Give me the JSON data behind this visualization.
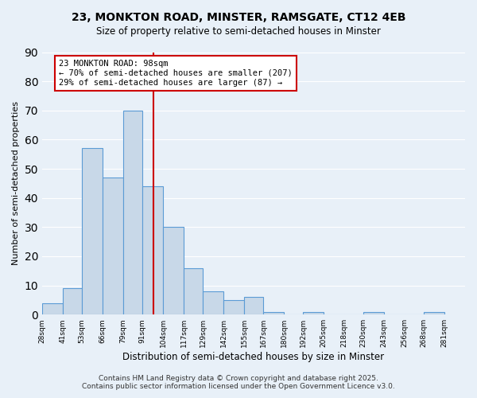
{
  "title1": "23, MONKTON ROAD, MINSTER, RAMSGATE, CT12 4EB",
  "title2": "Size of property relative to semi-detached houses in Minster",
  "xlabel": "Distribution of semi-detached houses by size in Minster",
  "ylabel": "Number of semi-detached properties",
  "bin_labels": [
    "28sqm",
    "41sqm",
    "53sqm",
    "66sqm",
    "79sqm",
    "91sqm",
    "104sqm",
    "117sqm",
    "129sqm",
    "142sqm",
    "155sqm",
    "167sqm",
    "180sqm",
    "192sqm",
    "205sqm",
    "218sqm",
    "230sqm",
    "243sqm",
    "256sqm",
    "268sqm",
    "281sqm"
  ],
  "bin_edges": [
    28,
    41,
    53,
    66,
    79,
    91,
    104,
    117,
    129,
    142,
    155,
    167,
    180,
    192,
    205,
    218,
    230,
    243,
    256,
    268,
    281
  ],
  "bar_heights": [
    4,
    9,
    57,
    47,
    70,
    44,
    30,
    16,
    8,
    5,
    6,
    1,
    0,
    1,
    0,
    0,
    1,
    0,
    0,
    1
  ],
  "bar_color": "#c8d8e8",
  "bar_edge_color": "#5b9bd5",
  "property_value": 98,
  "vline_color": "#cc0000",
  "annotation_title": "23 MONKTON ROAD: 98sqm",
  "annotation_line1": "← 70% of semi-detached houses are smaller (207)",
  "annotation_line2": "29% of semi-detached houses are larger (87) →",
  "annotation_box_edge": "#cc0000",
  "ylim": [
    0,
    90
  ],
  "yticks": [
    0,
    10,
    20,
    30,
    40,
    50,
    60,
    70,
    80,
    90
  ],
  "footer1": "Contains HM Land Registry data © Crown copyright and database right 2025.",
  "footer2": "Contains public sector information licensed under the Open Government Licence v3.0.",
  "bg_color": "#e8f0f8",
  "plot_bg_color": "#e8f0f8"
}
